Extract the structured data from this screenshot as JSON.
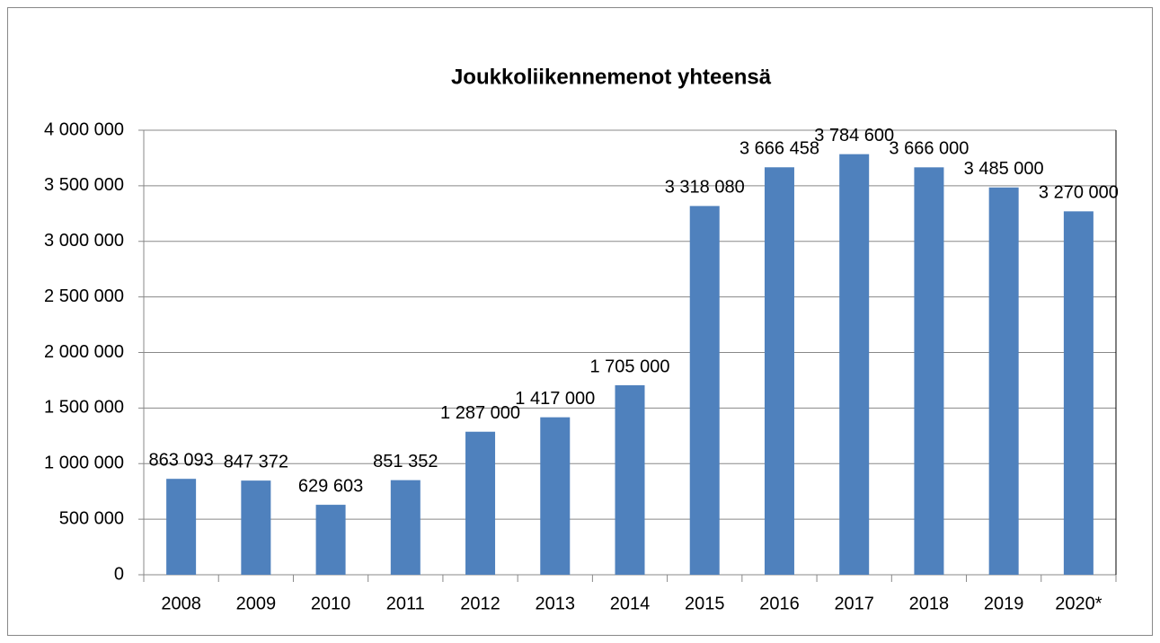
{
  "chart_data": {
    "type": "bar",
    "title": "Joukkoliikennemenot yhteensä",
    "categories": [
      "2008",
      "2009",
      "2010",
      "2011",
      "2012",
      "2013",
      "2014",
      "2015",
      "2016",
      "2017",
      "2018",
      "2019",
      "2020*"
    ],
    "values": [
      863093,
      847372,
      629603,
      851352,
      1287000,
      1417000,
      1705000,
      3318080,
      3666458,
      3784600,
      3666000,
      3485000,
      3270000
    ],
    "value_labels": [
      "863 093",
      "847 372",
      "629 603",
      "851 352",
      "1 287 000",
      "1 417 000",
      "1 705 000",
      "3 318 080",
      "3 666 458",
      "3 784 600",
      "3 666 000",
      "3 485 000",
      "3 270 000"
    ],
    "color": "#4f81bd",
    "ylim": [
      0,
      4000000
    ],
    "yticks": [
      0,
      {
        "value": 500000,
        "label": "500 000"
      },
      {
        "value": 1000000,
        "label": "1 000 000"
      },
      {
        "value": 1500000,
        "label": "1 500 000"
      },
      {
        "value": 2000000,
        "label": "2 000 000"
      },
      {
        "value": 2500000,
        "label": "2 500 000"
      },
      {
        "value": 3000000,
        "label": "3 000 000"
      },
      {
        "value": 3500000,
        "label": "3 500 000"
      },
      {
        "value": 4000000,
        "label": "4 000 000"
      }
    ],
    "grid": true
  }
}
